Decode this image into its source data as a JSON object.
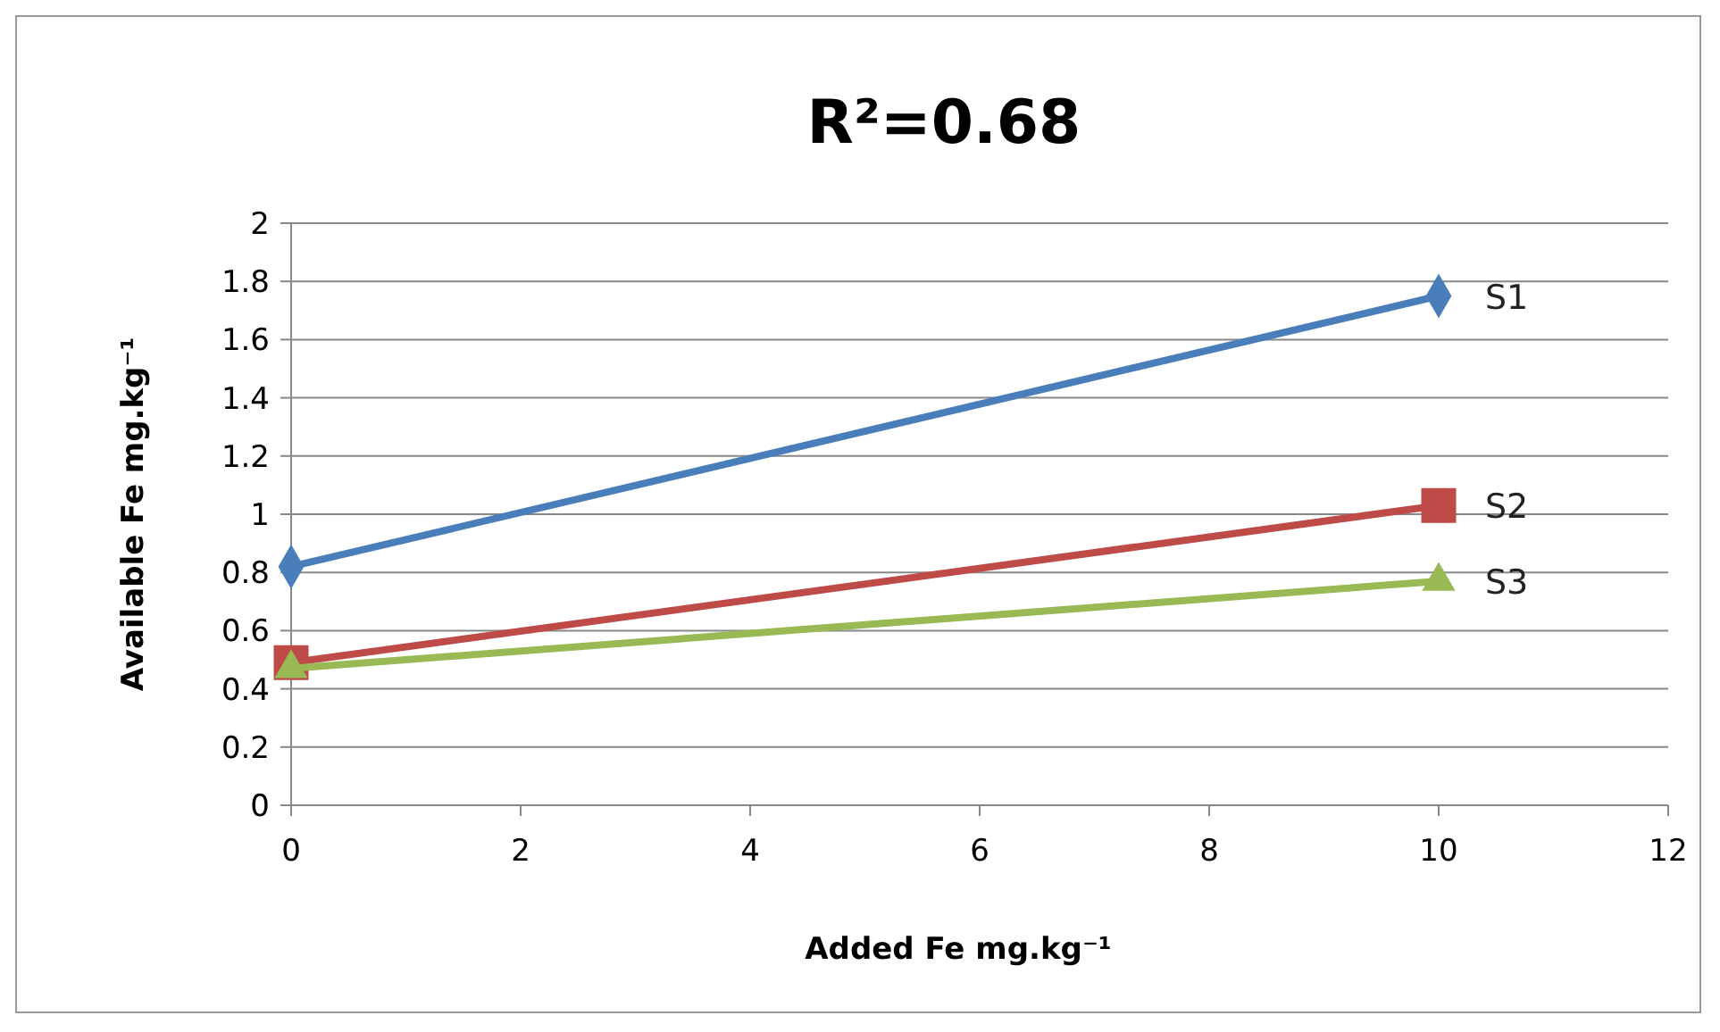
{
  "chart_data": {
    "type": "line",
    "title": "R²=0.68",
    "xlabel": "Added Fe mg.kg⁻¹",
    "ylabel": "Available Fe mg.kg⁻¹",
    "x": [
      0,
      10
    ],
    "series": [
      {
        "name": "S1",
        "color": "#4a7ebb",
        "values": [
          0.82,
          1.75
        ],
        "marker": "diamond"
      },
      {
        "name": "S2",
        "color": "#be4b48",
        "values": [
          0.49,
          1.03
        ],
        "marker": "square"
      },
      {
        "name": "S3",
        "color": "#98b954",
        "values": [
          0.47,
          0.77
        ],
        "marker": "triangle"
      }
    ],
    "xlim": [
      0,
      12
    ],
    "xticks": [
      0,
      2,
      4,
      6,
      8,
      10,
      12
    ],
    "ylim": [
      0,
      2
    ],
    "yticks": [
      0,
      0.2,
      0.4,
      0.6,
      0.8,
      1,
      1.2,
      1.4,
      1.6,
      1.8,
      2
    ],
    "grid": "y",
    "line_style": "solid"
  }
}
